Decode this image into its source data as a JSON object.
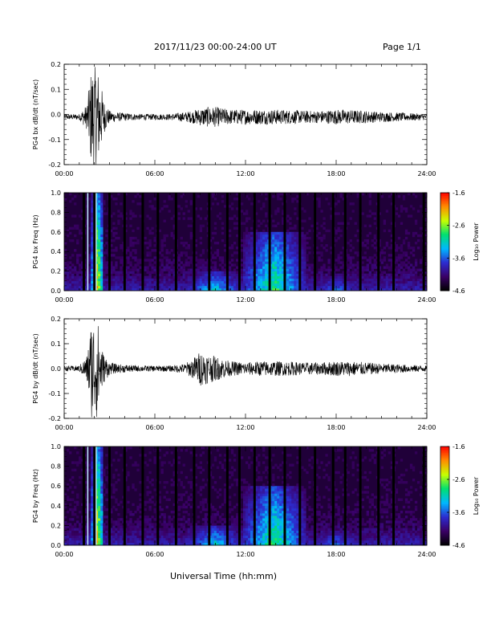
{
  "header": {
    "title": "2017/11/23  00:00-24:00 UT",
    "page": "Page 1/1"
  },
  "footer": {
    "xlabel": "Universal Time (hh:mm)"
  },
  "colors": {
    "trace": "#000000",
    "colormap": [
      "#000000",
      "#3a0066",
      "#2c2cd0",
      "#00b8ff",
      "#00e070",
      "#c8ff00",
      "#ff8c00",
      "#ff0000"
    ]
  },
  "chart_data": [
    {
      "type": "line",
      "ylabel": "PG4 bx dB/dt (nT/sec)",
      "xlim": [
        0,
        24
      ],
      "ylim": [
        -0.2,
        0.2
      ],
      "x_ticks": [
        "00:00",
        "06:00",
        "12:00",
        "18:00",
        "24:00"
      ],
      "y_ticks": [
        "-0.2",
        "-0.1",
        "0.0",
        "0.1",
        "0.2"
      ],
      "y_tick_values": [
        -0.2,
        -0.1,
        0.0,
        0.1,
        0.2
      ],
      "envelope": {
        "x": [
          0,
          1.0,
          1.5,
          1.8,
          2.0,
          2.2,
          2.4,
          2.6,
          3.0,
          3.5,
          5.0,
          7.0,
          8.0,
          8.5,
          9.0,
          9.5,
          10.0,
          10.5,
          11.0,
          12.0,
          13.0,
          14.0,
          15.0,
          16.0,
          17.0,
          18.0,
          19.0,
          20.0,
          21.0,
          22.0,
          23.0,
          24.0
        ],
        "amplitude": [
          0.01,
          0.012,
          0.05,
          0.2,
          0.2,
          0.2,
          0.15,
          0.07,
          0.025,
          0.018,
          0.012,
          0.012,
          0.02,
          0.025,
          0.035,
          0.04,
          0.04,
          0.035,
          0.03,
          0.03,
          0.03,
          0.03,
          0.028,
          0.025,
          0.025,
          0.03,
          0.028,
          0.025,
          0.02,
          0.018,
          0.015,
          0.012
        ]
      },
      "baseline": -0.01
    },
    {
      "type": "heatmap",
      "ylabel": "PG4 bx Freq (Hz)",
      "xlim": [
        0,
        24
      ],
      "ylim": [
        0.0,
        1.0
      ],
      "x_ticks": [
        "00:00",
        "06:00",
        "12:00",
        "18:00",
        "24:00"
      ],
      "y_ticks": [
        "0.0",
        "0.2",
        "0.4",
        "0.6",
        "0.8",
        "1.0"
      ],
      "y_tick_values": [
        0.0,
        0.2,
        0.4,
        0.6,
        0.8,
        1.0
      ],
      "colorbar": {
        "label": "Log₁₀ Power",
        "range": [
          -4.6,
          -1.6
        ],
        "ticks": [
          "-1.6",
          "-2.6",
          "-3.6",
          "-4.6"
        ],
        "tick_values": [
          -1.6,
          -2.6,
          -3.6,
          -4.6
        ]
      },
      "data_gaps_hours": [
        1.3,
        2.0,
        3.0,
        4.0,
        5.2,
        6.2,
        7.4,
        8.6,
        9.6,
        10.8,
        11.6,
        12.6,
        13.6,
        14.6,
        15.6,
        16.6,
        17.8,
        18.6,
        19.6,
        20.8,
        21.8,
        23.8
      ],
      "bright_lines_hours": [
        1.55,
        2.1
      ],
      "activity": [
        {
          "t_start": 1.8,
          "t_end": 2.6,
          "f_max": 1.0,
          "peak": -1.8
        },
        {
          "t_start": 8.0,
          "t_end": 12.0,
          "f_max": 0.2,
          "peak": -3.0
        },
        {
          "t_start": 11.8,
          "t_end": 16.0,
          "f_max": 0.6,
          "peak": -2.6
        },
        {
          "t_start": 16.0,
          "t_end": 20.0,
          "f_max": 0.15,
          "peak": -3.4
        }
      ]
    },
    {
      "type": "line",
      "ylabel": "PG4 by dB/dt (nT/sec)",
      "xlim": [
        0,
        24
      ],
      "ylim": [
        -0.2,
        0.2
      ],
      "x_ticks": [
        "00:00",
        "06:00",
        "12:00",
        "18:00",
        "24:00"
      ],
      "y_ticks": [
        "-0.2",
        "-0.1",
        "0.0",
        "0.1",
        "0.2"
      ],
      "y_tick_values": [
        -0.2,
        -0.1,
        0.0,
        0.1,
        0.2
      ],
      "envelope": {
        "x": [
          0,
          1.0,
          1.5,
          1.8,
          2.0,
          2.2,
          2.4,
          2.6,
          3.0,
          3.5,
          5.0,
          7.0,
          8.0,
          8.5,
          9.0,
          9.5,
          10.0,
          10.5,
          11.0,
          12.0,
          13.0,
          14.0,
          15.0,
          16.0,
          17.0,
          18.0,
          19.0,
          20.0,
          21.0,
          22.0,
          23.0,
          24.0
        ],
        "amplitude": [
          0.01,
          0.012,
          0.05,
          0.2,
          0.2,
          0.2,
          0.12,
          0.06,
          0.025,
          0.018,
          0.012,
          0.012,
          0.02,
          0.04,
          0.07,
          0.06,
          0.05,
          0.04,
          0.03,
          0.025,
          0.03,
          0.03,
          0.028,
          0.025,
          0.025,
          0.03,
          0.03,
          0.025,
          0.02,
          0.018,
          0.015,
          0.012
        ]
      },
      "baseline": 0.0
    },
    {
      "type": "heatmap",
      "ylabel": "PG4 by Freq (Hz)",
      "xlim": [
        0,
        24
      ],
      "ylim": [
        0.0,
        1.0
      ],
      "x_ticks": [
        "00:00",
        "06:00",
        "12:00",
        "18:00",
        "24:00"
      ],
      "y_ticks": [
        "0.0",
        "0.2",
        "0.4",
        "0.6",
        "0.8",
        "1.0"
      ],
      "y_tick_values": [
        0.0,
        0.2,
        0.4,
        0.6,
        0.8,
        1.0
      ],
      "colorbar": {
        "label": "Log₁₀ Power",
        "range": [
          -4.6,
          -1.6
        ],
        "ticks": [
          "-1.6",
          "-2.6",
          "-3.6",
          "-4.6"
        ],
        "tick_values": [
          -1.6,
          -2.6,
          -3.6,
          -4.6
        ]
      },
      "data_gaps_hours": [
        1.3,
        2.0,
        3.0,
        4.0,
        5.2,
        6.2,
        7.4,
        8.6,
        9.6,
        10.8,
        11.6,
        12.6,
        13.6,
        14.6,
        15.6,
        16.6,
        17.8,
        18.6,
        19.6,
        20.8,
        21.8,
        23.8
      ],
      "bright_lines_hours": [
        1.55,
        2.1
      ],
      "activity": [
        {
          "t_start": 1.8,
          "t_end": 2.6,
          "f_max": 1.0,
          "peak": -1.8
        },
        {
          "t_start": 8.0,
          "t_end": 12.0,
          "f_max": 0.2,
          "peak": -3.0
        },
        {
          "t_start": 11.8,
          "t_end": 16.0,
          "f_max": 0.6,
          "peak": -2.6
        },
        {
          "t_start": 16.0,
          "t_end": 20.0,
          "f_max": 0.15,
          "peak": -3.4
        }
      ]
    }
  ]
}
